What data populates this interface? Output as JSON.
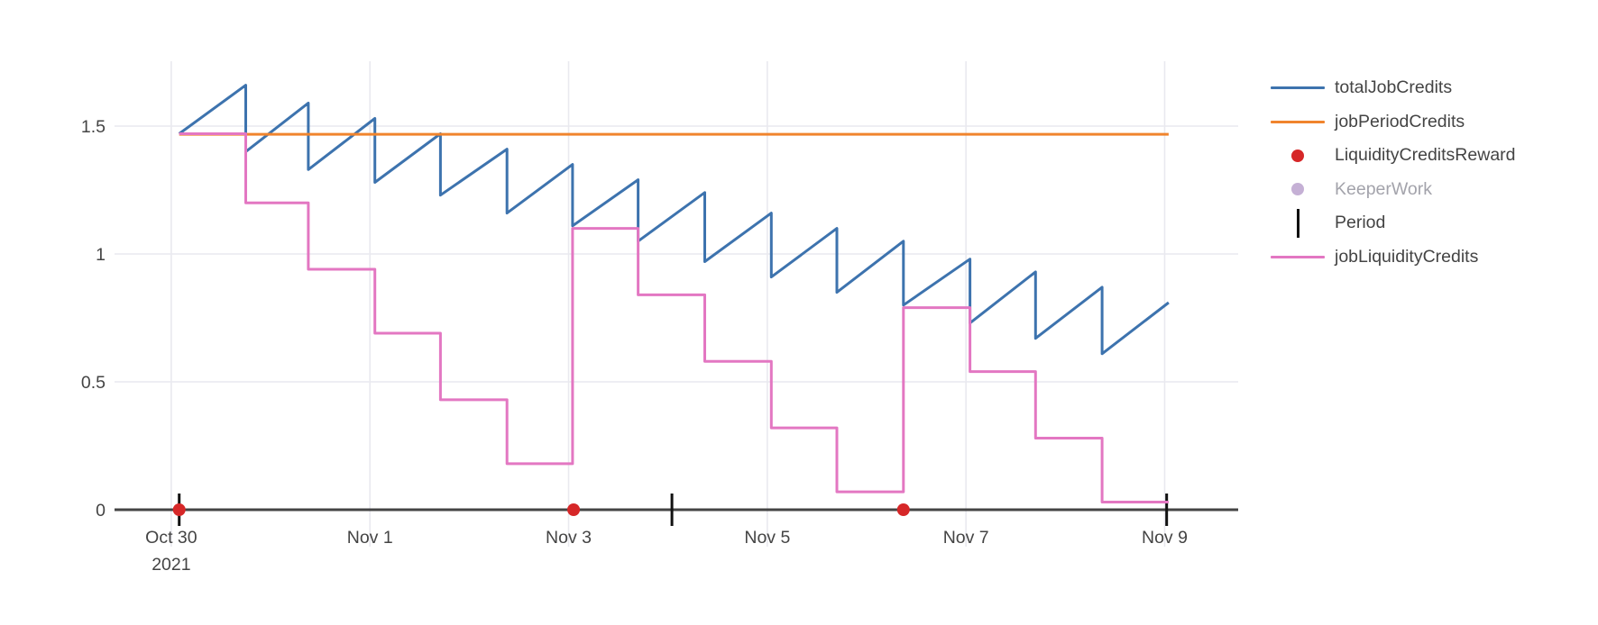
{
  "chart_data": {
    "type": "line",
    "title": "",
    "xlabel": "",
    "ylabel": "",
    "grid": true,
    "legend_position": "right",
    "x_axis": {
      "tick_days": [
        0,
        2,
        4,
        6,
        8,
        10
      ],
      "tick_labels": [
        "Oct 30",
        "Nov 1",
        "Nov 3",
        "Nov 5",
        "Nov 7",
        "Nov 9"
      ],
      "sub_label": "2021",
      "range_days": [
        -0.571,
        10.74
      ]
    },
    "y_axis": {
      "ticks": [
        0,
        0.5,
        1,
        1.5
      ],
      "tick_labels": [
        "0",
        "0.5",
        "1",
        "1.5"
      ],
      "range": [
        -0.1444,
        1.7535
      ]
    },
    "colors": {
      "grid": "#e9e9ef",
      "zeroline": "#444444",
      "tick_text": "#444444",
      "period_marker": "#111111"
    },
    "series": [
      {
        "name": "totalJobCredits",
        "type": "line",
        "color": "#3d73ae",
        "points": [
          [
            0.08,
            1.47
          ],
          [
            0.75,
            1.66
          ],
          [
            0.75,
            1.4
          ],
          [
            1.38,
            1.59
          ],
          [
            1.38,
            1.33
          ],
          [
            2.05,
            1.53
          ],
          [
            2.05,
            1.28
          ],
          [
            2.71,
            1.47
          ],
          [
            2.71,
            1.23
          ],
          [
            3.38,
            1.41
          ],
          [
            3.38,
            1.16
          ],
          [
            4.04,
            1.35
          ],
          [
            4.04,
            1.11
          ],
          [
            4.7,
            1.29
          ],
          [
            4.7,
            1.05
          ],
          [
            5.37,
            1.24
          ],
          [
            5.37,
            0.97
          ],
          [
            6.04,
            1.16
          ],
          [
            6.04,
            0.91
          ],
          [
            6.7,
            1.1
          ],
          [
            6.7,
            0.85
          ],
          [
            7.37,
            1.05
          ],
          [
            7.37,
            0.8
          ],
          [
            8.04,
            0.98
          ],
          [
            8.04,
            0.73
          ],
          [
            8.7,
            0.93
          ],
          [
            8.7,
            0.67
          ],
          [
            9.37,
            0.87
          ],
          [
            9.37,
            0.61
          ],
          [
            10.04,
            0.81
          ]
        ]
      },
      {
        "name": "jobPeriodCredits",
        "type": "line",
        "color": "#f0842d",
        "points": [
          [
            0.08,
            1.468
          ],
          [
            10.04,
            1.468
          ]
        ]
      },
      {
        "name": "LiquidityCreditsReward",
        "type": "scatter",
        "color": "#d62728",
        "points": [
          [
            0.08,
            0
          ],
          [
            4.05,
            0
          ],
          [
            7.37,
            0
          ]
        ]
      },
      {
        "name": "KeeperWork",
        "type": "scatter",
        "color": "#c5b0d5",
        "hidden": true,
        "points": []
      },
      {
        "name": "Period",
        "type": "tick",
        "color": "#111111",
        "points": [
          [
            0.08,
            0
          ],
          [
            5.04,
            0
          ],
          [
            10.02,
            0
          ]
        ]
      },
      {
        "name": "jobLiquidityCredits",
        "type": "line",
        "color": "#e377c2",
        "points": [
          [
            0.08,
            1.47
          ],
          [
            0.75,
            1.47
          ],
          [
            0.75,
            1.2
          ],
          [
            1.38,
            1.2
          ],
          [
            1.38,
            0.94
          ],
          [
            2.05,
            0.94
          ],
          [
            2.05,
            0.69
          ],
          [
            2.71,
            0.69
          ],
          [
            2.71,
            0.43
          ],
          [
            3.38,
            0.43
          ],
          [
            3.38,
            0.18
          ],
          [
            4.04,
            0.18
          ],
          [
            4.04,
            1.1
          ],
          [
            4.7,
            1.1
          ],
          [
            4.7,
            0.84
          ],
          [
            5.37,
            0.84
          ],
          [
            5.37,
            0.58
          ],
          [
            6.04,
            0.58
          ],
          [
            6.04,
            0.32
          ],
          [
            6.7,
            0.32
          ],
          [
            6.7,
            0.07
          ],
          [
            7.37,
            0.07
          ],
          [
            7.37,
            0.79
          ],
          [
            8.04,
            0.79
          ],
          [
            8.04,
            0.54
          ],
          [
            8.7,
            0.54
          ],
          [
            8.7,
            0.28
          ],
          [
            9.37,
            0.28
          ],
          [
            9.37,
            0.03
          ],
          [
            10.04,
            0.03
          ]
        ]
      }
    ]
  }
}
